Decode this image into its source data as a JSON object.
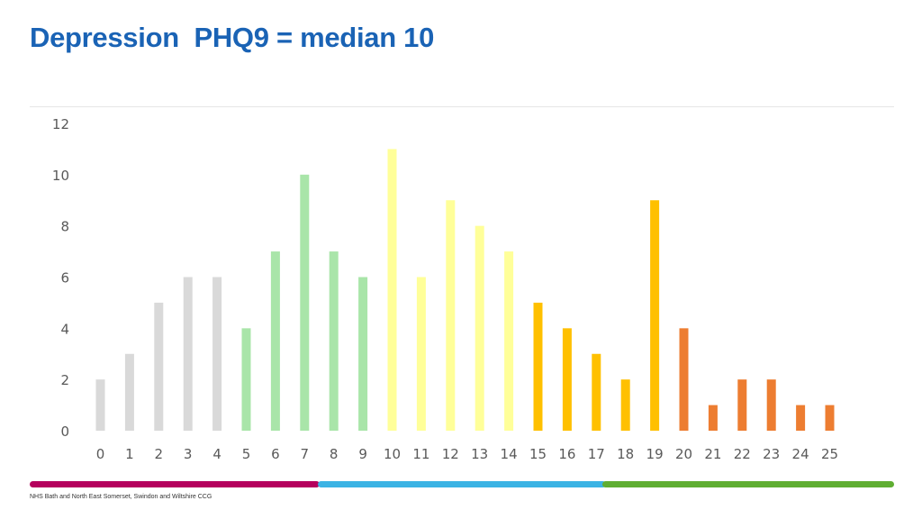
{
  "title": "Depression  PHQ9 = median 10",
  "footer": "NHS Bath and North East Somerset, Swindon and Wiltshire CCG",
  "band_colors": {
    "left": "#b5005d",
    "middle": "#3bb3e4",
    "right": "#5fae32",
    "dot": "#0b2c5a"
  },
  "chart_data": {
    "type": "bar",
    "title": "",
    "xlabel": "",
    "ylabel": "",
    "categories": [
      "0",
      "1",
      "2",
      "3",
      "4",
      "5",
      "6",
      "7",
      "8",
      "9",
      "10",
      "11",
      "12",
      "13",
      "14",
      "15",
      "16",
      "17",
      "18",
      "19",
      "20",
      "21",
      "22",
      "23",
      "24",
      "25"
    ],
    "values": [
      2,
      3,
      5,
      6,
      6,
      4,
      7,
      10,
      7,
      6,
      11,
      6,
      9,
      8,
      7,
      5,
      4,
      3,
      2,
      9,
      4,
      1,
      2,
      2,
      1,
      1
    ],
    "colors": [
      "#d9d9d9",
      "#d9d9d9",
      "#d9d9d9",
      "#d9d9d9",
      "#d9d9d9",
      "#a9e5a9",
      "#a9e5a9",
      "#a9e5a9",
      "#a9e5a9",
      "#a9e5a9",
      "#ffff99",
      "#ffff99",
      "#ffff99",
      "#ffff99",
      "#ffff99",
      "#ffc000",
      "#ffc000",
      "#ffc000",
      "#ffc000",
      "#ffc000",
      "#ed7d31",
      "#ed7d31",
      "#ed7d31",
      "#ed7d31",
      "#ed7d31",
      "#ed7d31"
    ],
    "yticks": [
      "0",
      "2",
      "4",
      "6",
      "8",
      "10",
      "12"
    ],
    "ylim": [
      0,
      12
    ],
    "grid": false,
    "legend": "none"
  }
}
